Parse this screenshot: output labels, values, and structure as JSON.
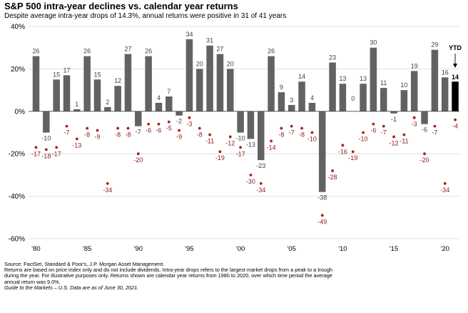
{
  "title": "S&P 500 intra-year declines vs. calendar year returns",
  "subtitle": "Despite average intra-year drops of 14.3%, annual returns were positive in 31 of 41 years",
  "source": {
    "line1": "Source: FactSet, Standard & Poor's, J.P. Morgan Asset Management.",
    "line2": "Returns are based on price index only and do not include dividends. Intra-year drops refers to the largest market drops from a peak to a trough",
    "line3": "during the year. For illustrative purposes only. Returns shown are calendar year returns from 1980 to 2020, over which time period the average",
    "line4": "annual return was 9.0%.",
    "line5": "Guide to the Markets – U.S. Data are as of June 30, 2021."
  },
  "colors": {
    "bar": "#626262",
    "ytd_bar": "#000000",
    "drop_dot": "#b01c1c",
    "drop_label": "#8b1a1a",
    "grid": "#d9d9d9"
  },
  "chart_data": {
    "type": "bar",
    "ylim": [
      -60,
      40
    ],
    "yticks": [
      40,
      20,
      0,
      -20,
      -40,
      -60
    ],
    "ytick_labels": [
      "40%",
      "20%",
      "0%",
      "-20%",
      "-40%",
      "-60%"
    ],
    "xtick_labels": [
      "'80",
      "'85",
      "'90",
      "'95",
      "'00",
      "'05",
      "'10",
      "'15",
      "'20"
    ],
    "grid": true,
    "categories": [
      "1980",
      "1981",
      "1982",
      "1983",
      "1984",
      "1985",
      "1986",
      "1987",
      "1988",
      "1989",
      "1990",
      "1991",
      "1992",
      "1993",
      "1994",
      "1995",
      "1996",
      "1997",
      "1998",
      "1999",
      "2000",
      "2001",
      "2002",
      "2003",
      "2004",
      "2005",
      "2006",
      "2007",
      "2008",
      "2009",
      "2010",
      "2011",
      "2012",
      "2013",
      "2014",
      "2015",
      "2016",
      "2017",
      "2018",
      "2019",
      "2020",
      "YTD"
    ],
    "series": [
      {
        "values": [
          26,
          -10,
          15,
          17,
          1,
          26,
          15,
          2,
          12,
          27,
          -7,
          26,
          4,
          7,
          -2,
          34,
          20,
          31,
          27,
          20,
          -10,
          -13,
          -23,
          26,
          9,
          3,
          14,
          4,
          -38,
          23,
          13,
          0,
          13,
          30,
          11,
          -1,
          10,
          19,
          -6,
          29,
          16,
          14
        ]
      },
      {
        "values": [
          -17,
          -18,
          -17,
          -7,
          -13,
          -8,
          -9,
          -34,
          -8,
          -8,
          -20,
          -6,
          -6,
          -5,
          -9,
          -3,
          -8,
          -11,
          -19,
          -12,
          -17,
          -30,
          -34,
          -14,
          -8,
          -7,
          -8,
          -10,
          -49,
          -28,
          -16,
          -19,
          -10,
          -6,
          -7,
          -12,
          -11,
          -3,
          -20,
          -7,
          -34,
          -4
        ]
      }
    ],
    "annotation": "YTD"
  }
}
